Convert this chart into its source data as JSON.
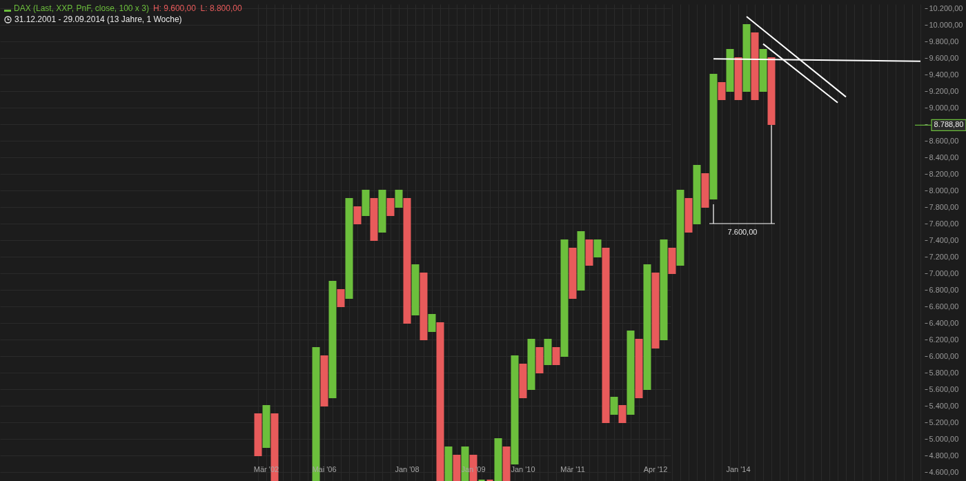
{
  "chart_data": {
    "type": "bar",
    "title": "DAX (Last, XXP, PnF, close, 100 x 3)",
    "subtitle": "31.12.2001 - 29.09.2014 (13 Jahre, 1 Woche)",
    "annotations": [
      "H: 9.600,00  L: 8.800,00"
    ],
    "categories": [
      null,
      "Mär '02",
      null,
      null,
      null,
      null,
      null,
      null,
      "Mai '06",
      null,
      null,
      null,
      null,
      null,
      null,
      null,
      null,
      null,
      "Jan '08",
      null,
      null,
      null,
      null,
      null,
      null,
      null,
      "Jan '09",
      null,
      null,
      null,
      null,
      null,
      "Jan '10",
      null,
      null,
      null,
      null,
      null,
      "Mär '11",
      null,
      null,
      null,
      null,
      null,
      null,
      null,
      null,
      null,
      "Apr '12",
      null,
      null,
      null,
      null,
      null,
      null,
      null,
      null,
      null,
      "Jan '14",
      null,
      null,
      null,
      null,
      null,
      null,
      null,
      null,
      null,
      null,
      null,
      null,
      null,
      null,
      null,
      null,
      null,
      null,
      null,
      null,
      null,
      null
    ],
    "series": [
      {
        "color": "#6cbf3c",
        "base": [
          null,
          4900,
          null,
          null,
          null,
          null,
          null,
          4500,
          null,
          5500,
          null,
          6700,
          null,
          7700,
          null,
          7500,
          null,
          7800,
          null,
          6500,
          null,
          6300,
          null,
          4500,
          null,
          4500,
          null,
          4500,
          null,
          4500,
          null,
          4700,
          null,
          5600,
          null,
          5900,
          null,
          6000,
          null,
          6800,
          null,
          7200,
          null,
          5300,
          null,
          5300,
          null,
          5600,
          null,
          6200,
          null,
          7100,
          null,
          7600,
          null,
          7900,
          null,
          9200,
          null,
          9200,
          null,
          9200,
          null,
          null,
          null,
          null,
          null,
          null,
          null,
          null,
          null,
          null,
          null,
          null,
          null,
          null,
          null,
          null,
          null,
          null,
          null
        ],
        "values": [
          null,
          500,
          null,
          null,
          null,
          null,
          null,
          1600,
          null,
          1400,
          null,
          1200,
          null,
          300,
          null,
          500,
          null,
          200,
          null,
          600,
          null,
          200,
          null,
          400,
          null,
          400,
          null,
          0,
          null,
          500,
          null,
          1300,
          null,
          600,
          null,
          300,
          null,
          1400,
          null,
          700,
          null,
          200,
          null,
          200,
          null,
          1000,
          null,
          1500,
          null,
          1200,
          null,
          900,
          null,
          700,
          null,
          1500,
          null,
          500,
          null,
          800,
          null,
          500,
          null,
          null,
          null,
          null,
          null,
          null,
          null,
          null,
          null,
          null,
          null,
          null,
          null,
          null,
          null,
          null,
          null,
          null,
          null
        ]
      },
      {
        "color": "#e85b5b",
        "base": [
          4800,
          null,
          4500,
          null,
          null,
          null,
          null,
          null,
          5400,
          null,
          6600,
          null,
          7600,
          null,
          7400,
          null,
          7700,
          null,
          6400,
          null,
          6200,
          null,
          4500,
          null,
          4500,
          null,
          4500,
          null,
          4500,
          null,
          4500,
          null,
          5500,
          null,
          5800,
          null,
          5900,
          null,
          6700,
          null,
          7100,
          null,
          5200,
          null,
          5200,
          null,
          5500,
          null,
          6100,
          null,
          7000,
          null,
          7500,
          null,
          7800,
          null,
          9100,
          null,
          9100,
          null,
          9100,
          null,
          8800,
          null,
          null,
          null,
          null,
          null,
          null,
          null,
          null,
          null,
          null,
          null,
          null,
          null,
          null,
          null,
          null,
          null,
          null
        ],
        "values": [
          500,
          null,
          800,
          null,
          null,
          null,
          null,
          null,
          600,
          null,
          200,
          null,
          200,
          null,
          500,
          null,
          200,
          null,
          1500,
          null,
          800,
          null,
          1900,
          null,
          300,
          null,
          300,
          null,
          0,
          null,
          400,
          null,
          400,
          null,
          300,
          null,
          200,
          null,
          600,
          null,
          300,
          null,
          2100,
          null,
          200,
          null,
          700,
          null,
          900,
          null,
          300,
          null,
          400,
          null,
          400,
          null,
          200,
          null,
          500,
          null,
          800,
          null,
          800,
          null,
          null,
          null,
          null,
          null,
          null,
          null,
          null,
          null,
          null,
          null,
          null,
          null,
          null,
          null,
          null,
          null,
          null
        ]
      },
      {
        "type": "line",
        "color": "#ffffff",
        "values": [
          null,
          null,
          null,
          null,
          null,
          null,
          null,
          null,
          null,
          null,
          null,
          null,
          null,
          null,
          null,
          null,
          null,
          null,
          null,
          null,
          null,
          null,
          null,
          null,
          null,
          null,
          null,
          null,
          null,
          null,
          null,
          null,
          null,
          null,
          null,
          null,
          null,
          null,
          null,
          null,
          null,
          null,
          null,
          null,
          null,
          null,
          null,
          null,
          null,
          null,
          null,
          null,
          null,
          null,
          null,
          null,
          null,
          null,
          null,
          10100,
          null,
          null,
          null,
          null,
          null,
          null,
          null,
          null,
          null,
          null,
          null,
          9130,
          null,
          null,
          null,
          null,
          null,
          null,
          null,
          null,
          null
        ]
      },
      {
        "type": "line",
        "color": "#ffffff",
        "values": [
          null,
          null,
          null,
          null,
          null,
          null,
          null,
          null,
          null,
          null,
          null,
          null,
          null,
          null,
          null,
          null,
          null,
          null,
          null,
          null,
          null,
          null,
          null,
          null,
          null,
          null,
          null,
          null,
          null,
          null,
          null,
          null,
          null,
          null,
          null,
          null,
          null,
          null,
          null,
          null,
          null,
          null,
          null,
          null,
          null,
          null,
          null,
          null,
          null,
          null,
          null,
          null,
          null,
          null,
          null,
          null,
          null,
          null,
          null,
          null,
          null,
          9770,
          null,
          null,
          null,
          null,
          null,
          null,
          null,
          null,
          9060,
          null,
          null,
          null,
          null,
          null,
          null,
          null,
          null,
          null,
          null
        ]
      },
      {
        "type": "line",
        "color": "#ffffff",
        "values": [
          null,
          null,
          null,
          null,
          null,
          null,
          null,
          null,
          null,
          null,
          null,
          null,
          null,
          null,
          null,
          null,
          null,
          null,
          null,
          null,
          null,
          null,
          null,
          null,
          null,
          null,
          null,
          null,
          null,
          null,
          null,
          null,
          null,
          null,
          null,
          null,
          null,
          null,
          null,
          null,
          null,
          null,
          null,
          null,
          null,
          null,
          null,
          null,
          null,
          null,
          null,
          null,
          null,
          null,
          null,
          9590,
          null,
          null,
          null,
          null,
          null,
          null,
          null,
          null,
          null,
          null,
          null,
          null,
          null,
          null,
          null,
          null,
          null,
          null,
          null,
          null,
          null,
          null,
          null,
          null,
          9560
        ]
      }
    ],
    "ref_lines": [
      {
        "axis": "y",
        "value": 8788.8,
        "label": "8.788,80",
        "color": "#6cbf3c"
      },
      {
        "axis": "y",
        "value": 7600,
        "label": "7.600,00",
        "color": "#ffffff"
      }
    ],
    "ylim": [
      4500,
      10250
    ],
    "yticks": [
      {
        "value": 4600,
        "label": "4.600,00"
      },
      {
        "value": 4800,
        "label": "4.800,00"
      },
      {
        "value": 5000,
        "label": "5.000,00"
      },
      {
        "value": 5200,
        "label": "5.200,00"
      },
      {
        "value": 5400,
        "label": "5.400,00"
      },
      {
        "value": 5600,
        "label": "5.600,00"
      },
      {
        "value": 5800,
        "label": "5.800,00"
      },
      {
        "value": 6000,
        "label": "6.000,00"
      },
      {
        "value": 6200,
        "label": "6.200,00"
      },
      {
        "value": 6400,
        "label": "6.400,00"
      },
      {
        "value": 6600,
        "label": "6.600,00"
      },
      {
        "value": 6800,
        "label": "6.800,00"
      },
      {
        "value": 7000,
        "label": "7.000,00"
      },
      {
        "value": 7200,
        "label": "7.200,00"
      },
      {
        "value": 7400,
        "label": "7.400,00"
      },
      {
        "value": 7600,
        "label": "7.600,00"
      },
      {
        "value": 7800,
        "label": "7.800,00"
      },
      {
        "value": 8000,
        "label": "8.000,00"
      },
      {
        "value": 8200,
        "label": "8.200,00"
      },
      {
        "value": 8400,
        "label": "8.400,00"
      },
      {
        "value": 8600,
        "label": "8.600,00"
      },
      {
        "value": 8800,
        "label": null
      },
      {
        "value": 9000,
        "label": "9.000,00"
      },
      {
        "value": 9200,
        "label": "9.200,00"
      },
      {
        "value": 9400,
        "label": "9.400,00"
      },
      {
        "value": 9600,
        "label": "9.600,00"
      },
      {
        "value": 9800,
        "label": "9.800,00"
      },
      {
        "value": 10000,
        "label": "10.000,00"
      },
      {
        "value": 10200,
        "label": "10.200,00"
      }
    ],
    "grid": true
  }
}
